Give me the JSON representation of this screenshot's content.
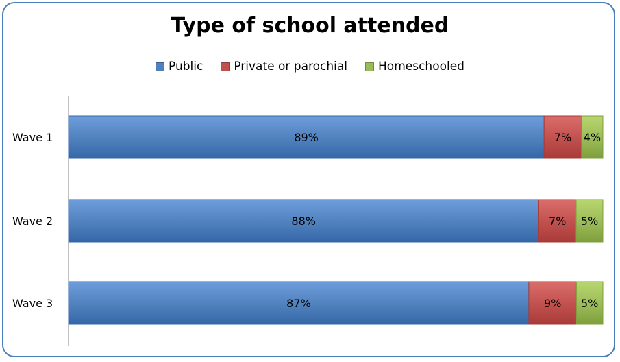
{
  "chart_data": {
    "type": "bar",
    "orientation": "horizontal",
    "stacked": true,
    "title": "Type of school attended",
    "categories": [
      "Wave 1",
      "Wave 2",
      "Wave 3"
    ],
    "series": [
      {
        "name": "Public",
        "values": [
          89,
          88,
          87
        ],
        "labels": [
          "89%",
          "88%",
          "87%"
        ],
        "color": "#4f81bd",
        "color_dark": "#3566a8",
        "color_light": "#6e9ddb"
      },
      {
        "name": "Private or parochial",
        "values": [
          7,
          7,
          9
        ],
        "labels": [
          "7%",
          "7%",
          "9%"
        ],
        "color": "#c0504d",
        "color_dark": "#a83b38",
        "color_light": "#da6d6a"
      },
      {
        "name": "Homeschooled",
        "values": [
          4,
          5,
          5
        ],
        "labels": [
          "4%",
          "5%",
          "5%"
        ],
        "color": "#9bbb59",
        "color_dark": "#7f9f3c",
        "color_light": "#b8d66e"
      }
    ],
    "xlim": [
      0,
      100
    ],
    "grid": false,
    "legend_position": "top"
  }
}
